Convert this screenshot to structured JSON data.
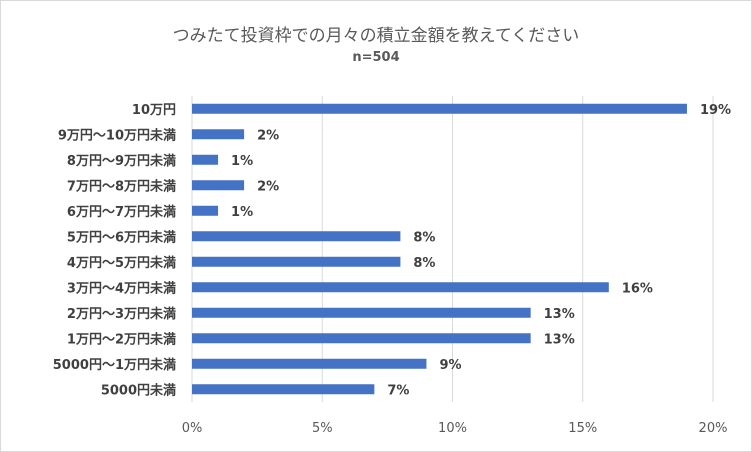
{
  "chart_data": {
    "type": "bar",
    "orientation": "horizontal",
    "title": "つみたて投資枠での月々の積立金額を教えてください",
    "subtitle": "n=504",
    "categories": [
      "10万円",
      "9万円～10万円未満",
      "8万円～9万円未満",
      "7万円～8万円未満",
      "6万円～7万円未満",
      "5万円～6万円未満",
      "4万円～5万円未満",
      "3万円～4万円未満",
      "2万円～3万円未満",
      "1万円～2万円未満",
      "5000円～1万円未満",
      "5000円未満"
    ],
    "values": [
      19,
      2,
      1,
      2,
      1,
      8,
      8,
      16,
      13,
      13,
      9,
      7
    ],
    "data_labels": [
      "19%",
      "2%",
      "1%",
      "2%",
      "1%",
      "8%",
      "8%",
      "16%",
      "13%",
      "13%",
      "9%",
      "7%"
    ],
    "xlim": [
      0,
      20
    ],
    "x_ticks": [
      0,
      5,
      10,
      15,
      20
    ],
    "x_tick_labels": [
      "0%",
      "5%",
      "10%",
      "15%",
      "20%"
    ],
    "grid": true,
    "bar_color": "#4472c4"
  }
}
